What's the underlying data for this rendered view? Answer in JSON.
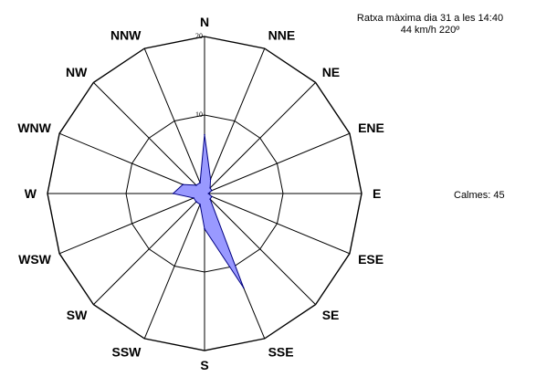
{
  "chart_data": {
    "type": "wind-rose",
    "directions": [
      "N",
      "NNE",
      "NE",
      "ENE",
      "E",
      "ESE",
      "SE",
      "SSE",
      "S",
      "SSW",
      "SW",
      "WSW",
      "W",
      "WNW",
      "NW",
      "NNW"
    ],
    "values": [
      7.5,
      2,
      1,
      1,
      0.5,
      1,
      1,
      13,
      4.5,
      1.5,
      1.5,
      1.5,
      4,
      3,
      1.5,
      1.5
    ],
    "rlim": [
      0,
      20
    ],
    "rings": [
      10,
      20
    ],
    "ring_labels": [
      "10",
      "20"
    ],
    "zero_label": "0",
    "fill_color": "#9999ff",
    "stroke_color": "#000080"
  },
  "notes": {
    "gust_line1": "Ratxa màxima dia 31 a les 14:40",
    "gust_line2": "44 km/h 220º",
    "calms": "Calmes: 45"
  }
}
